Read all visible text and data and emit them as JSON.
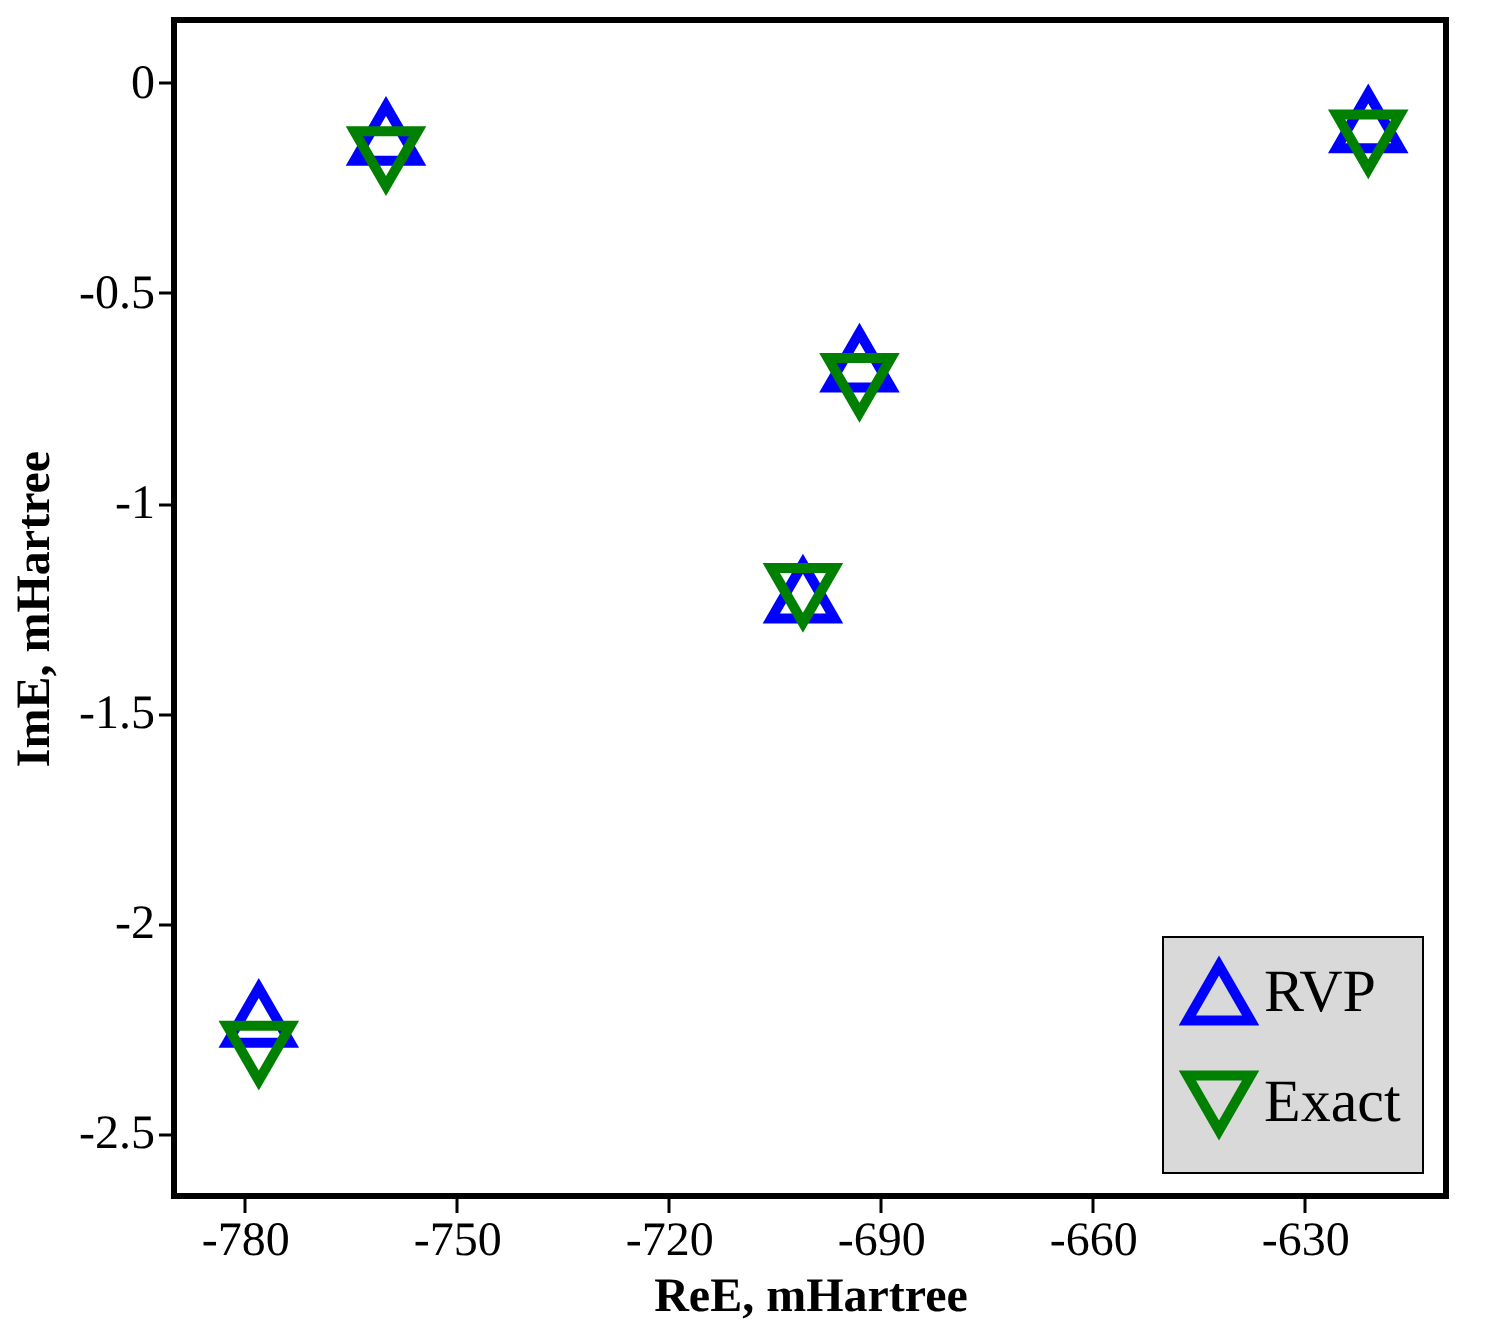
{
  "chart_data": {
    "type": "scatter",
    "xlabel": "ReE, mHartree",
    "ylabel": "ImE, mHartree",
    "xlim": [
      -790,
      -610
    ],
    "xticks": [
      -780,
      -750,
      -720,
      -690,
      -660,
      -630
    ],
    "ylim": [
      -2.65,
      0.15
    ],
    "yticks": [
      {
        "value": 0,
        "label": "0"
      },
      -0.5,
      -1,
      -1.5,
      -2,
      -2.5
    ],
    "grid": false,
    "legend": "bottom right",
    "series": [
      {
        "name": "RVP",
        "color": "#0000ff",
        "marker": "triangle",
        "x": [
          -760,
          -693,
          -701,
          -778,
          -621
        ],
        "values": [
          -0.12,
          -0.66,
          -1.21,
          -2.22,
          -0.09
        ]
      },
      {
        "name": "Exact",
        "color": "#008000",
        "marker": "triangle-down",
        "x": [
          -760,
          -693,
          -701,
          -778,
          -621
        ],
        "values": [
          -0.18,
          -0.72,
          -1.22,
          -2.31,
          -0.14
        ]
      }
    ]
  }
}
